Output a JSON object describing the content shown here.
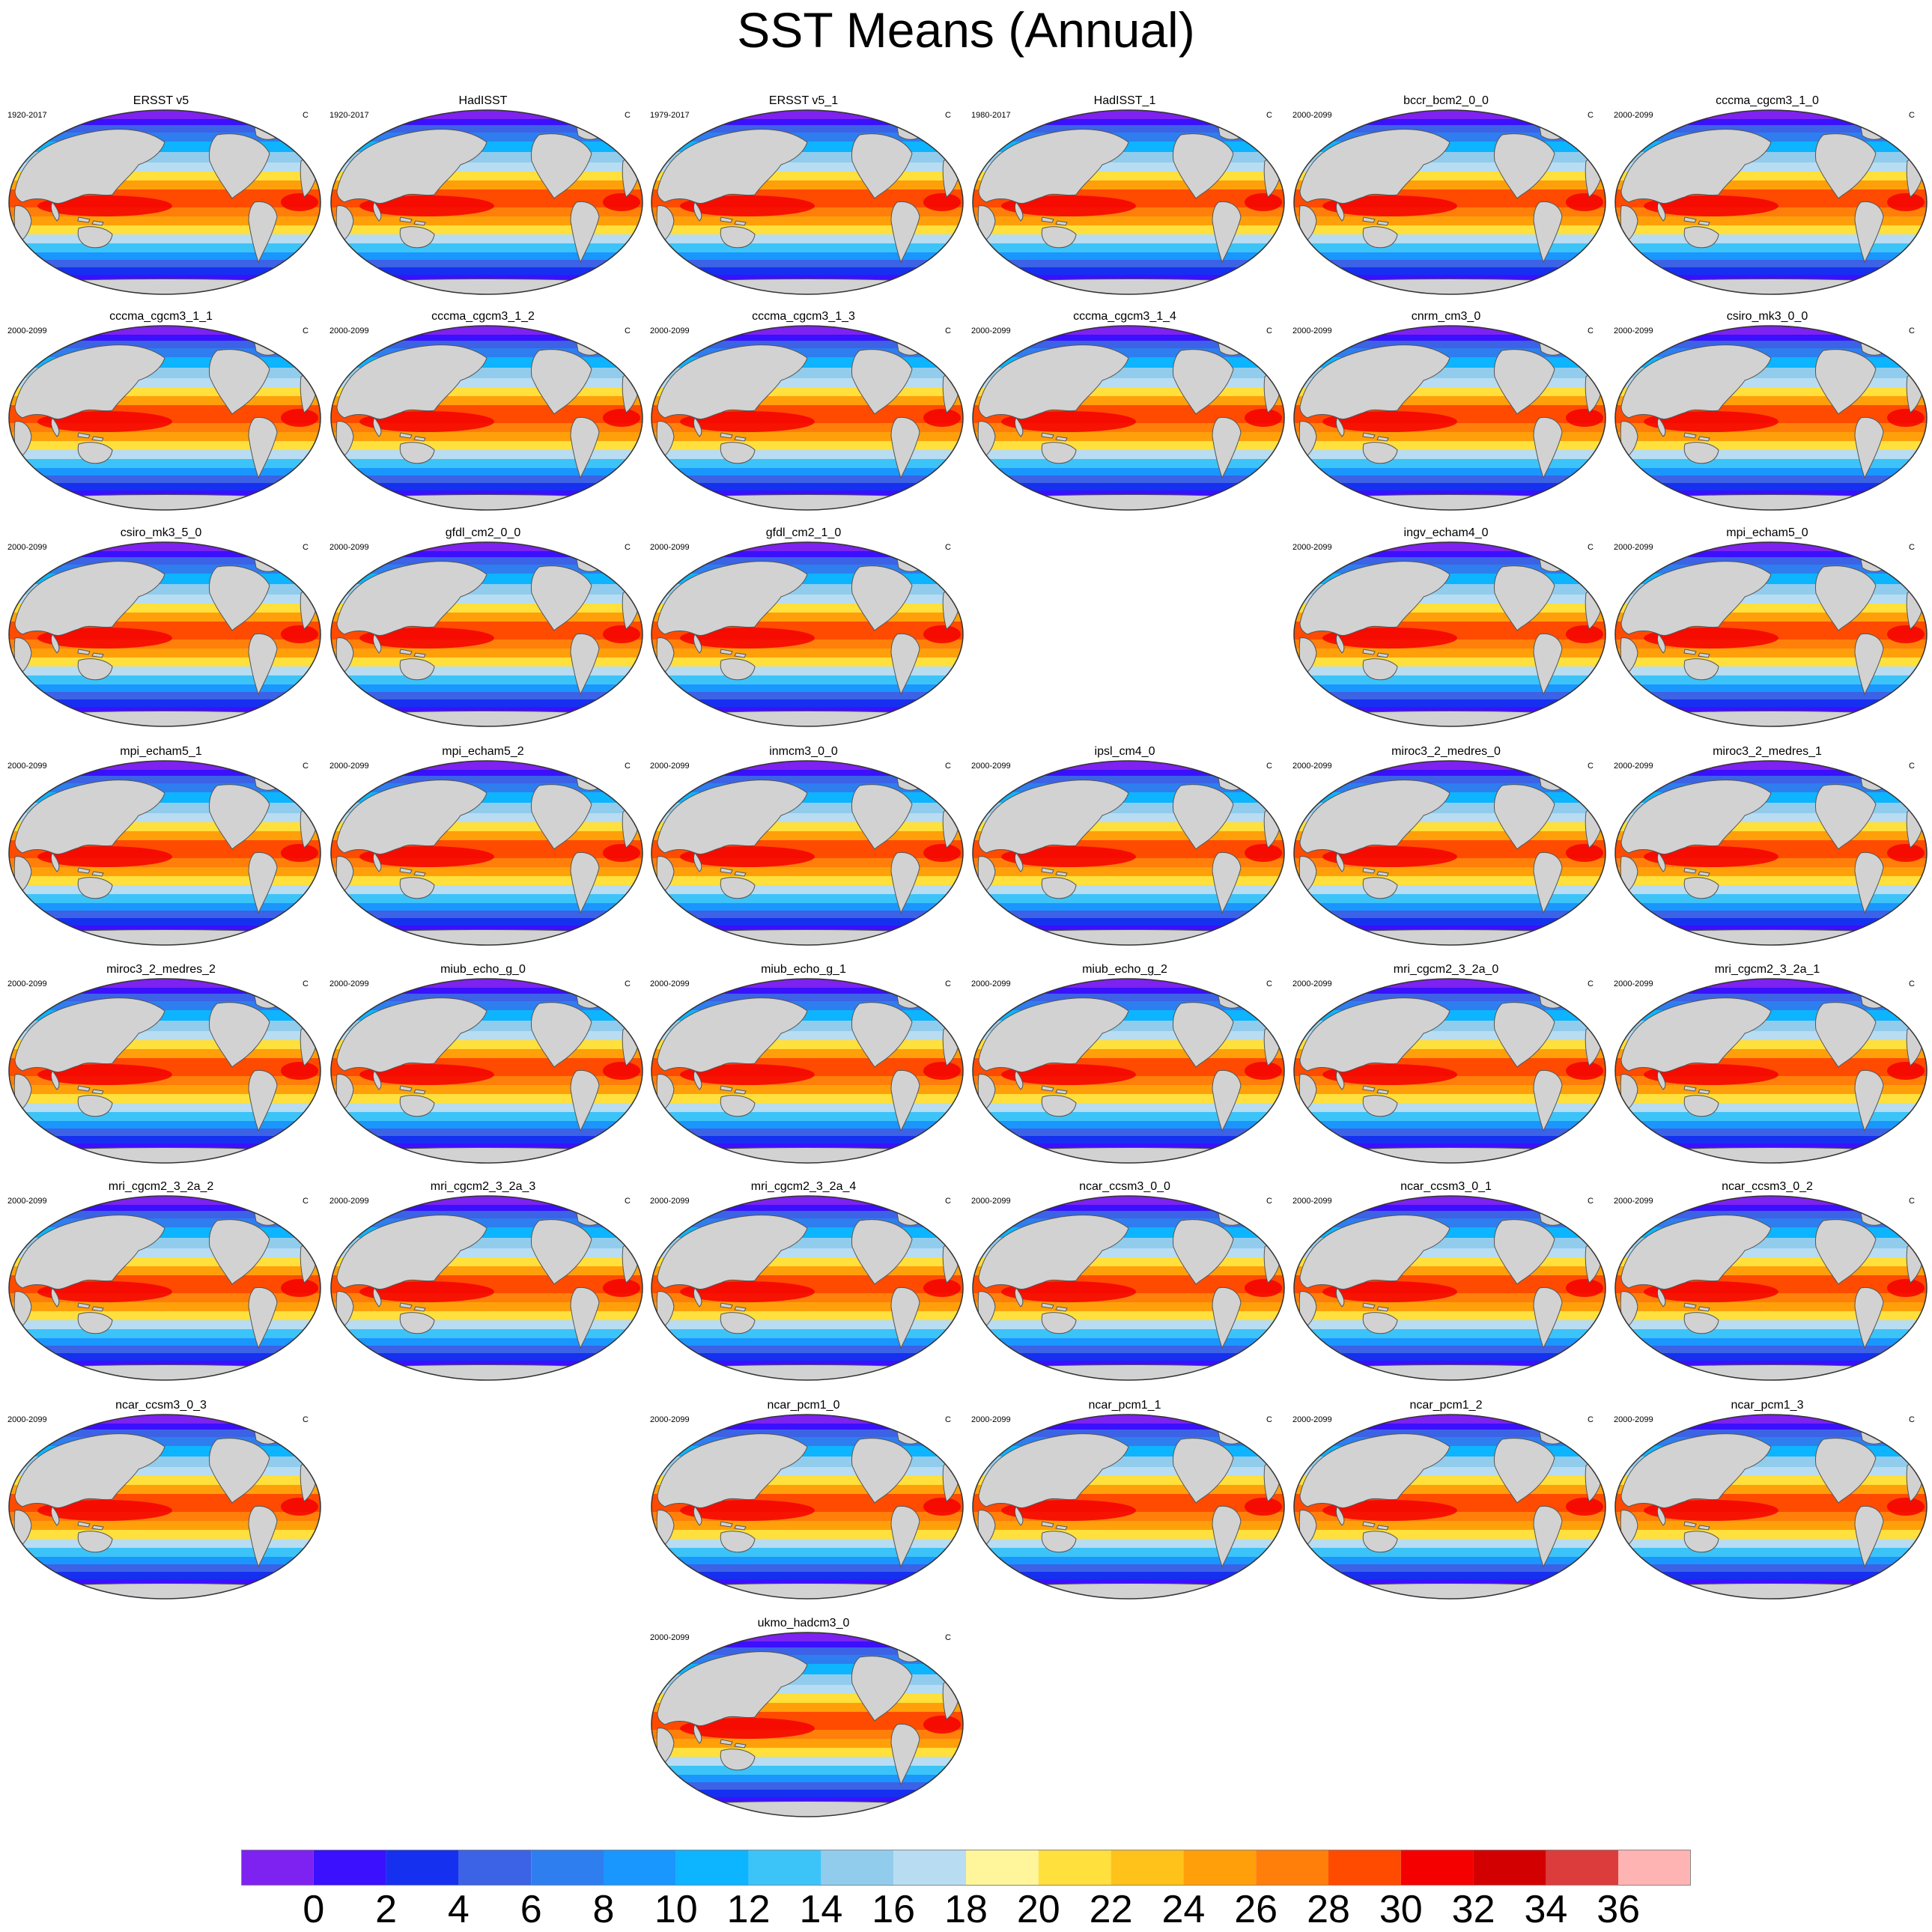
{
  "title": "SST Means (Annual)",
  "units": "C",
  "panels": [
    {
      "name": "ERSST v5",
      "period": "1920-2017"
    },
    {
      "name": "HadISST",
      "period": "1920-2017"
    },
    {
      "name": "ERSST v5_1",
      "period": "1979-2017"
    },
    {
      "name": "HadISST_1",
      "period": "1980-2017"
    },
    {
      "name": "bccr_bcm2_0_0",
      "period": "2000-2099"
    },
    {
      "name": "cccma_cgcm3_1_0",
      "period": "2000-2099"
    },
    {
      "name": "cccma_cgcm3_1_1",
      "period": "2000-2099"
    },
    {
      "name": "cccma_cgcm3_1_2",
      "period": "2000-2099"
    },
    {
      "name": "cccma_cgcm3_1_3",
      "period": "2000-2099"
    },
    {
      "name": "cccma_cgcm3_1_4",
      "period": "2000-2099"
    },
    {
      "name": "cnrm_cm3_0",
      "period": "2000-2099"
    },
    {
      "name": "csiro_mk3_0_0",
      "period": "2000-2099"
    },
    {
      "name": "csiro_mk3_5_0",
      "period": "2000-2099"
    },
    {
      "name": "gfdl_cm2_0_0",
      "period": "2000-2099"
    },
    {
      "name": "gfdl_cm2_1_0",
      "period": "2000-2099"
    },
    {
      "name": "ingv_echam4_0",
      "period": "2000-2099"
    },
    {
      "name": "mpi_echam5_0",
      "period": "2000-2099"
    },
    {
      "name": "mpi_echam5_1",
      "period": "2000-2099"
    },
    {
      "name": "mpi_echam5_2",
      "period": "2000-2099"
    },
    {
      "name": "inmcm3_0_0",
      "period": "2000-2099"
    },
    {
      "name": "ipsl_cm4_0",
      "period": "2000-2099"
    },
    {
      "name": "miroc3_2_medres_0",
      "period": "2000-2099"
    },
    {
      "name": "miroc3_2_medres_1",
      "period": "2000-2099"
    },
    {
      "name": "miroc3_2_medres_2",
      "period": "2000-2099"
    },
    {
      "name": "miub_echo_g_0",
      "period": "2000-2099"
    },
    {
      "name": "miub_echo_g_1",
      "period": "2000-2099"
    },
    {
      "name": "miub_echo_g_2",
      "period": "2000-2099"
    },
    {
      "name": "mri_cgcm2_3_2a_0",
      "period": "2000-2099"
    },
    {
      "name": "mri_cgcm2_3_2a_1",
      "period": "2000-2099"
    },
    {
      "name": "mri_cgcm2_3_2a_2",
      "period": "2000-2099"
    },
    {
      "name": "mri_cgcm2_3_2a_3",
      "period": "2000-2099"
    },
    {
      "name": "mri_cgcm2_3_2a_4",
      "period": "2000-2099"
    },
    {
      "name": "ncar_ccsm3_0_0",
      "period": "2000-2099"
    },
    {
      "name": "ncar_ccsm3_0_1",
      "period": "2000-2099"
    },
    {
      "name": "ncar_ccsm3_0_2",
      "period": "2000-2099"
    },
    {
      "name": "ncar_ccsm3_0_3",
      "period": "2000-2099"
    },
    {
      "name": "ncar_pcm1_0",
      "period": "2000-2099"
    },
    {
      "name": "ncar_pcm1_1",
      "period": "2000-2099"
    },
    {
      "name": "ncar_pcm1_2",
      "period": "2000-2099"
    },
    {
      "name": "ncar_pcm1_3",
      "period": "2000-2099"
    },
    {
      "name": "ukmo_hadcm3_0",
      "period": "2000-2099"
    }
  ],
  "colorbar": {
    "colors": [
      "#7d22f0",
      "#3a10ff",
      "#1630f0",
      "#3c62e6",
      "#2e7ef0",
      "#1a96ff",
      "#0db4ff",
      "#3cc4f8",
      "#92ccec",
      "#b8dcf2",
      "#fff59a",
      "#ffe03c",
      "#ffc21a",
      "#ffa00a",
      "#ff7f0a",
      "#ff4b00",
      "#f50000",
      "#d20000",
      "#dc3c3c",
      "#ffb4b4"
    ],
    "labels": [
      "0",
      "2",
      "4",
      "6",
      "8",
      "10",
      "12",
      "14",
      "16",
      "18",
      "20",
      "22",
      "24",
      "26",
      "28",
      "30",
      "32",
      "34",
      "36"
    ]
  }
}
